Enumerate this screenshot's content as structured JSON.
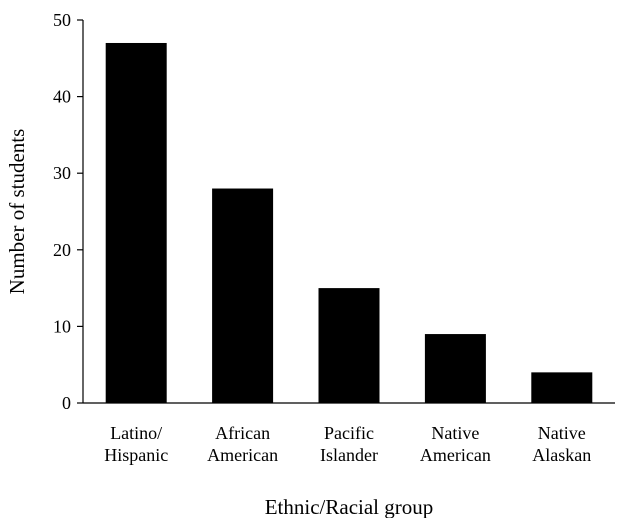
{
  "chart_data": {
    "type": "bar",
    "categories": [
      [
        "Latino/",
        "Hispanic"
      ],
      [
        "African",
        "American"
      ],
      [
        "Pacific",
        "Islander"
      ],
      [
        "Native",
        "American"
      ],
      [
        "Native",
        "Alaskan"
      ]
    ],
    "values": [
      47,
      28,
      15,
      9,
      4
    ],
    "xlabel": "Ethnic/Racial group",
    "ylabel": "Number of students",
    "ylim": [
      0,
      50
    ],
    "yticks": [
      0,
      10,
      20,
      30,
      40,
      50
    ],
    "bar_color": "#000000",
    "grid": false,
    "legend": "none"
  }
}
